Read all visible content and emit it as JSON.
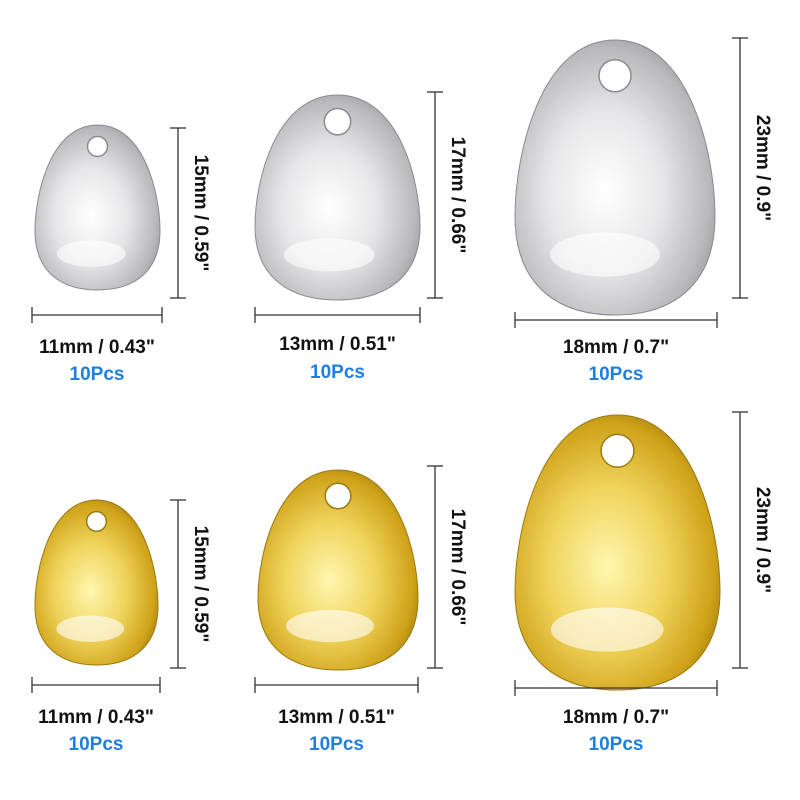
{
  "rows": [
    {
      "items": [
        {
          "width": "11mm / 0.43\"",
          "height": "15mm / 0.59\"",
          "quantity": "10Pcs"
        },
        {
          "width": "13mm / 0.51\"",
          "height": "17mm / 0.66\"",
          "quantity": "10Pcs"
        },
        {
          "width": "18mm / 0.7\"",
          "height": "23mm / 0.9\"",
          "quantity": "10Pcs"
        }
      ]
    },
    {
      "items": [
        {
          "width": "11mm / 0.43\"",
          "height": "15mm / 0.59\"",
          "quantity": "10Pcs"
        },
        {
          "width": "13mm / 0.51\"",
          "height": "17mm / 0.66\"",
          "quantity": "10Pcs"
        },
        {
          "width": "18mm / 0.7\"",
          "height": "23mm / 0.9\"",
          "quantity": "10Pcs"
        }
      ]
    }
  ]
}
